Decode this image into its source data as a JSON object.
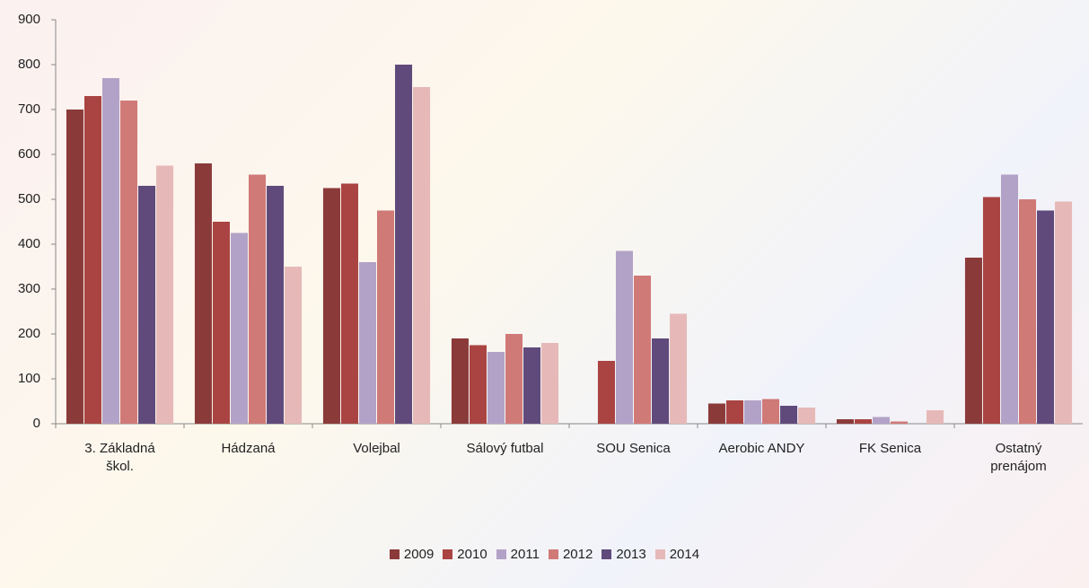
{
  "chart_data": {
    "type": "bar",
    "categories": [
      "3. Základná škol.",
      "Hádzaná",
      "Volejbal",
      "Sálový futbal",
      "SOU Senica",
      "Aerobic ANDY",
      "FK Senica",
      "Ostatný prenájom"
    ],
    "series": [
      {
        "name": "2009",
        "color": "#8b3a3a",
        "values": [
          700,
          580,
          525,
          190,
          0,
          45,
          10,
          370
        ]
      },
      {
        "name": "2010",
        "color": "#a94442",
        "values": [
          730,
          450,
          535,
          175,
          140,
          52,
          10,
          505
        ]
      },
      {
        "name": "2011",
        "color": "#b3a2c7",
        "values": [
          770,
          425,
          360,
          160,
          385,
          52,
          15,
          555
        ]
      },
      {
        "name": "2012",
        "color": "#d07a78",
        "values": [
          720,
          555,
          475,
          200,
          330,
          55,
          5,
          500
        ]
      },
      {
        "name": "2013",
        "color": "#604a7b",
        "values": [
          530,
          530,
          800,
          170,
          190,
          40,
          0,
          475
        ]
      },
      {
        "name": "2014",
        "color": "#e6b9b8",
        "values": [
          575,
          350,
          750,
          180,
          245,
          36,
          30,
          495
        ]
      }
    ],
    "ylim": [
      0,
      900
    ],
    "yticks": [
      0,
      100,
      200,
      300,
      400,
      500,
      600,
      700,
      800,
      900
    ],
    "grid": false
  }
}
